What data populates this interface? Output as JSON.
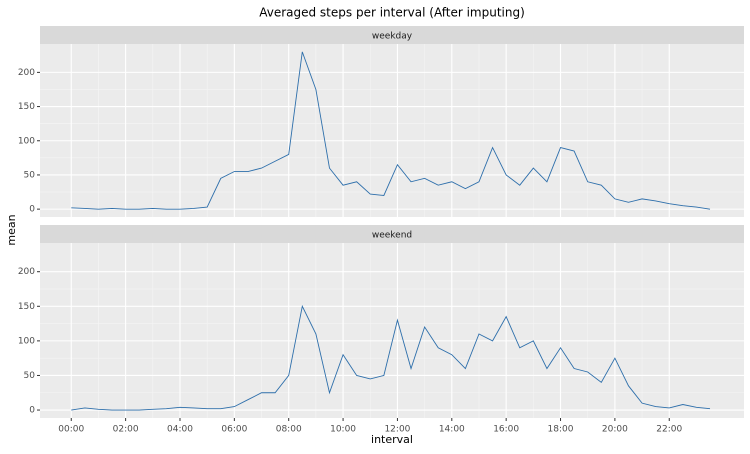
{
  "chart_data": {
    "type": "line",
    "title": "Averaged steps per interval (After imputing)",
    "x_label": "interval",
    "y_label": "mean",
    "x": [
      0,
      0.5,
      1,
      1.5,
      2,
      2.5,
      3,
      3.5,
      4,
      4.5,
      5,
      5.5,
      6,
      6.5,
      7,
      7.5,
      8,
      8.5,
      9,
      9.5,
      10,
      10.5,
      11,
      11.5,
      12,
      12.5,
      13,
      13.5,
      14,
      14.5,
      15,
      15.5,
      16,
      16.5,
      17,
      17.5,
      18,
      18.5,
      19,
      19.5,
      20,
      20.5,
      21,
      21.5,
      22,
      22.5,
      23,
      23.5
    ],
    "series": [
      {
        "name": "weekday",
        "color": "#2e6fab",
        "values": [
          2,
          1,
          0,
          1,
          0,
          0,
          1,
          0,
          0,
          1,
          3,
          45,
          55,
          55,
          60,
          70,
          80,
          230,
          175,
          60,
          35,
          40,
          22,
          20,
          65,
          40,
          45,
          35,
          40,
          30,
          40,
          90,
          50,
          35,
          60,
          40,
          90,
          85,
          40,
          35,
          15,
          10,
          15,
          12,
          8,
          5,
          3,
          0
        ]
      },
      {
        "name": "weekend",
        "color": "#2e6fab",
        "values": [
          0,
          3,
          1,
          0,
          0,
          0,
          1,
          2,
          4,
          3,
          2,
          2,
          5,
          15,
          25,
          25,
          50,
          150,
          110,
          25,
          80,
          50,
          45,
          50,
          130,
          60,
          120,
          90,
          80,
          60,
          110,
          100,
          135,
          90,
          100,
          60,
          90,
          60,
          55,
          40,
          75,
          35,
          10,
          5,
          3,
          8,
          4,
          2
        ]
      }
    ],
    "xlim": [
      -1.15,
      24.75
    ],
    "xticks": [
      {
        "value": 0,
        "label": "00:00"
      },
      {
        "value": 2,
        "label": "02:00"
      },
      {
        "value": 4,
        "label": "04:00"
      },
      {
        "value": 6,
        "label": "06:00"
      },
      {
        "value": 8,
        "label": "08:00"
      },
      {
        "value": 10,
        "label": "10:00"
      },
      {
        "value": 12,
        "label": "12:00"
      },
      {
        "value": 14,
        "label": "14:00"
      },
      {
        "value": 16,
        "label": "16:00"
      },
      {
        "value": 18,
        "label": "18:00"
      },
      {
        "value": 20,
        "label": "20:00"
      },
      {
        "value": 22,
        "label": "22:00"
      }
    ],
    "ylim": [
      -11.5,
      241.5
    ],
    "yticks": [
      0,
      50,
      100,
      150,
      200
    ],
    "grid": true
  }
}
